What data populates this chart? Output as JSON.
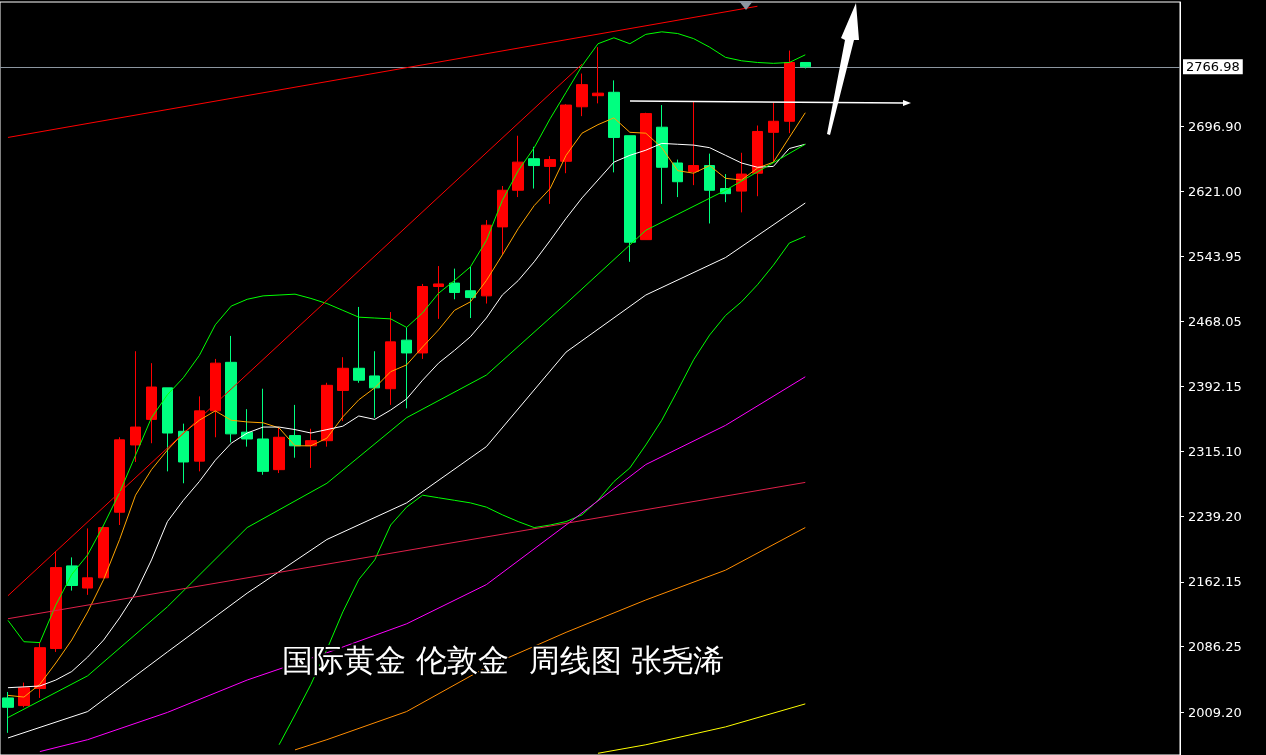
{
  "chart_data": {
    "type": "candlestick",
    "annotations": [
      "国际黄金 伦敦金  周线图 张尧浠"
    ],
    "categories": [
      null,
      null,
      null,
      null,
      null,
      null,
      null,
      null,
      null,
      null,
      null,
      null,
      null,
      null,
      null,
      null,
      null,
      null,
      null,
      null,
      null,
      null,
      null,
      null,
      null,
      null,
      null,
      null,
      null,
      null,
      null,
      null,
      null,
      null,
      null,
      null,
      null,
      null,
      null,
      null,
      null,
      null,
      null,
      null,
      null,
      null,
      null,
      null,
      null,
      null,
      null
    ],
    "ohlc": [
      [
        2026,
        2033,
        1985,
        2015
      ],
      [
        2017,
        2044,
        2015,
        2038
      ],
      [
        2037,
        2091,
        2026,
        2085
      ],
      [
        2084,
        2198,
        2080,
        2179
      ],
      [
        2181,
        2191,
        2152,
        2158
      ],
      [
        2155,
        2225,
        2147,
        2167
      ],
      [
        2167,
        2227,
        2167,
        2226
      ],
      [
        2244,
        2332,
        2229,
        2329
      ],
      [
        2323,
        2433,
        2303,
        2344
      ],
      [
        2353,
        2419,
        2325,
        2391
      ],
      [
        2390,
        2390,
        2292,
        2337
      ],
      [
        2339,
        2348,
        2278,
        2303
      ],
      [
        2304,
        2380,
        2292,
        2363
      ],
      [
        2363,
        2424,
        2332,
        2419
      ],
      [
        2420,
        2451,
        2326,
        2336
      ],
      [
        2338,
        2365,
        2321,
        2330
      ],
      [
        2330,
        2389,
        2288,
        2292
      ],
      [
        2294,
        2343,
        2290,
        2332
      ],
      [
        2334,
        2370,
        2308,
        2322
      ],
      [
        2322,
        2342,
        2296,
        2328
      ],
      [
        2328,
        2396,
        2321,
        2393
      ],
      [
        2387,
        2426,
        2351,
        2413
      ],
      [
        2413,
        2485,
        2396,
        2399
      ],
      [
        2404,
        2433,
        2355,
        2390
      ],
      [
        2389,
        2479,
        2370,
        2444
      ],
      [
        2446,
        2461,
        2366,
        2431
      ],
      [
        2431,
        2512,
        2424,
        2509
      ],
      [
        2509,
        2533,
        2471,
        2512
      ],
      [
        2513,
        2530,
        2494,
        2502
      ],
      [
        2504,
        2532,
        2472,
        2496
      ],
      [
        2498,
        2587,
        2489,
        2581
      ],
      [
        2579,
        2627,
        2547,
        2622
      ],
      [
        2622,
        2686,
        2614,
        2655
      ],
      [
        2659,
        2673,
        2624,
        2651
      ],
      [
        2650,
        2662,
        2606,
        2658
      ],
      [
        2656,
        2723,
        2642,
        2722
      ],
      [
        2720,
        2759,
        2709,
        2746
      ],
      [
        2733,
        2790,
        2724,
        2736
      ],
      [
        2737,
        2751,
        2643,
        2684
      ],
      [
        2686,
        2686,
        2538,
        2561
      ],
      [
        2564,
        2713,
        2564,
        2712
      ],
      [
        2696,
        2722,
        2606,
        2649
      ],
      [
        2654,
        2658,
        2614,
        2632
      ],
      [
        2644,
        2726,
        2628,
        2651
      ],
      [
        2651,
        2665,
        2583,
        2622
      ],
      [
        2624,
        2641,
        2608,
        2618
      ],
      [
        2621,
        2666,
        2596,
        2641
      ],
      [
        2642,
        2698,
        2615,
        2691
      ],
      [
        2690,
        2725,
        2656,
        2703
      ],
      [
        2703,
        2786,
        2689,
        2772
      ],
      [
        2772,
        2772,
        2765,
        2767
      ]
    ],
    "colors": [
      "#00ff80",
      "#ff0000",
      "#ff0000",
      "#ff0000",
      "#00ff80",
      "#ff0000",
      "#ff0000",
      "#ff0000",
      "#ff0000",
      "#ff0000",
      "#00ff80",
      "#00ff80",
      "#ff0000",
      "#ff0000",
      "#00ff80",
      "#00ff80",
      "#00ff80",
      "#ff0000",
      "#00ff80",
      "#ff0000",
      "#ff0000",
      "#ff0000",
      "#00ff80",
      "#00ff80",
      "#ff0000",
      "#00ff80",
      "#ff0000",
      "#ff0000",
      "#00ff80",
      "#00ff80",
      "#ff0000",
      "#ff0000",
      "#ff0000",
      "#00ff80",
      "#ff0000",
      "#ff0000",
      "#ff0000",
      "#ff0000",
      "#00ff80",
      "#00ff80",
      "#ff0000",
      "#00ff80",
      "#00ff80",
      "#ff0000",
      "#00ff80",
      "#00ff80",
      "#ff0000",
      "#ff0000",
      "#ff0000",
      "#ff0000",
      "#00ff80"
    ],
    "series": [
      {
        "type": "line",
        "color": "#ffa500",
        "values": [
          2029,
          2027,
          2042,
          2067,
          2094,
          2127,
          2165,
          2212,
          2264,
          2294,
          2317,
          2337,
          2352,
          2363,
          2352,
          2350,
          2349,
          2343,
          2322,
          2322,
          2331,
          2356,
          2376,
          2390,
          2409,
          2417,
          2438,
          2458,
          2481,
          2491,
          2516,
          2546,
          2577,
          2604,
          2624,
          2663,
          2689,
          2699,
          2707,
          2690,
          2689,
          2672,
          2645,
          2642,
          2651,
          2636,
          2634,
          2648,
          2655,
          2684,
          2713
        ]
      },
      {
        "type": "line",
        "color": "#ffffff",
        "values": [
          2038,
          2039,
          2040,
          2047,
          2057,
          2074,
          2094,
          2120,
          2149,
          2188,
          2233,
          2258,
          2280,
          2305,
          2325,
          2337,
          2344,
          2344,
          2341,
          2337,
          2341,
          2345,
          2357,
          2353,
          2364,
          2377,
          2399,
          2419,
          2434,
          2450,
          2472,
          2499,
          2516,
          2538,
          2563,
          2589,
          2613,
          2634,
          2655,
          2663,
          2669,
          2677,
          2676,
          2675,
          2672,
          2663,
          2654,
          2649,
          2650,
          2671,
          2676
        ]
      },
      {
        "type": "line",
        "color": "#00ff00",
        "values": [
          2117,
          2092,
          2091,
          2135,
          2171,
          2194,
          2229,
          2267,
          2311,
          2355,
          2382,
          2402,
          2428,
          2464,
          2486,
          2494,
          2498,
          2499,
          2500,
          2495,
          2489,
          2481,
          2473,
          2472,
          2471,
          2461,
          2478,
          2501,
          2516,
          2532,
          2563,
          2610,
          2645,
          2672,
          2706,
          2737,
          2768,
          2794,
          2801,
          2794,
          2805,
          2808,
          2806,
          2800,
          2790,
          2778,
          2774,
          2772,
          2771,
          2772,
          2781
        ]
      },
      {
        "type": "line",
        "color": "#00ff00",
        "values": [
          null,
          null,
          null,
          null,
          null,
          null,
          null,
          null,
          null,
          null,
          null,
          null,
          null,
          null,
          null,
          null,
          null,
          1971,
          2006,
          2042,
          2083,
          2127,
          2165,
          2188,
          2229,
          2250,
          2264,
          2261,
          2258,
          2255,
          2250,
          2241,
          2233,
          2226,
          2229,
          2233,
          2241,
          2258,
          2280,
          2296,
          2323,
          2352,
          2387,
          2423,
          2452,
          2475,
          2491,
          2511,
          2534,
          2560,
          2568
        ]
      },
      {
        "type": "line",
        "color": "#00ff00",
        "values": [
          2003,
          null,
          null,
          null,
          null,
          2052,
          null,
          null,
          null,
          null,
          2133,
          null,
          null,
          null,
          null,
          2226,
          null,
          null,
          null,
          null,
          2278,
          null,
          null,
          null,
          null,
          2355,
          null,
          null,
          null,
          null,
          2405,
          null,
          null,
          null,
          null,
          2489,
          null,
          null,
          null,
          null,
          2575,
          null,
          null,
          null,
          null,
          2622,
          null,
          null,
          null,
          null,
          2676
        ]
      },
      {
        "type": "line",
        "color": "#ffffff",
        "values": [
          1979,
          null,
          null,
          null,
          null,
          2010,
          null,
          null,
          null,
          null,
          2080,
          null,
          null,
          null,
          null,
          2149,
          null,
          null,
          null,
          null,
          2212,
          null,
          null,
          null,
          null,
          2255,
          null,
          null,
          null,
          null,
          2321,
          null,
          null,
          null,
          null,
          2432,
          null,
          null,
          null,
          null,
          2499,
          null,
          null,
          null,
          null,
          2543,
          null,
          null,
          null,
          null,
          2607
        ]
      },
      {
        "type": "line",
        "color": "#ff00ff",
        "values": [
          null,
          null,
          1963,
          null,
          null,
          1977,
          null,
          null,
          null,
          null,
          2009,
          null,
          null,
          null,
          null,
          2047,
          null,
          null,
          null,
          null,
          2079,
          null,
          null,
          null,
          null,
          2113,
          null,
          null,
          null,
          null,
          2159,
          null,
          null,
          null,
          null,
          2229,
          null,
          null,
          null,
          null,
          2300,
          null,
          null,
          null,
          null,
          2346,
          null,
          null,
          null,
          null,
          2403
        ]
      },
      {
        "type": "line",
        "color": "#ff8c00",
        "values": [
          null,
          null,
          null,
          null,
          null,
          null,
          null,
          null,
          null,
          null,
          null,
          null,
          null,
          null,
          null,
          null,
          null,
          null,
          1965,
          null,
          1977,
          null,
          null,
          null,
          null,
          2010,
          null,
          null,
          null,
          null,
          2062,
          null,
          null,
          null,
          null,
          2103,
          null,
          null,
          null,
          null,
          2141,
          null,
          null,
          null,
          null,
          2176,
          null,
          null,
          null,
          null,
          2226
        ]
      },
      {
        "type": "line",
        "color": "#ffff00",
        "values": [
          null,
          null,
          null,
          null,
          null,
          null,
          null,
          null,
          null,
          null,
          null,
          null,
          null,
          null,
          null,
          null,
          null,
          null,
          null,
          null,
          null,
          null,
          null,
          null,
          null,
          null,
          null,
          null,
          null,
          null,
          null,
          null,
          null,
          null,
          null,
          null,
          null,
          1961,
          null,
          null,
          1971,
          null,
          null,
          null,
          null,
          1992,
          null,
          null,
          null,
          null,
          2019
        ]
      },
      {
        "type": "line",
        "color": "#ff0000",
        "values": [
          2146,
          null,
          null,
          null,
          null,
          null,
          null,
          null,
          null,
          null,
          null,
          null,
          null,
          null,
          null,
          null,
          null,
          null,
          null,
          null,
          null,
          null,
          null,
          null,
          null,
          null,
          null,
          null,
          null,
          null,
          null,
          null,
          null,
          null,
          null,
          null,
          2770,
          null,
          null,
          null,
          null,
          null,
          null,
          null,
          null,
          null,
          null,
          null,
          null,
          null,
          null
        ]
      },
      {
        "type": "line",
        "color": "#ff0000",
        "values": [
          2684,
          null,
          null,
          null,
          null,
          null,
          null,
          null,
          null,
          null,
          null,
          null,
          null,
          null,
          null,
          null,
          null,
          null,
          null,
          null,
          null,
          null,
          null,
          null,
          null,
          null,
          null,
          null,
          null,
          null,
          null,
          null,
          null,
          null,
          null,
          null,
          null,
          null,
          null,
          null,
          null,
          null,
          null,
          null,
          null,
          null,
          null,
          2838,
          null,
          null,
          null
        ]
      },
      {
        "type": "line",
        "color": "#e0204a",
        "values": [
          2119,
          null,
          null,
          null,
          null,
          null,
          null,
          null,
          null,
          null,
          null,
          null,
          null,
          null,
          null,
          null,
          null,
          null,
          null,
          null,
          null,
          null,
          null,
          null,
          null,
          null,
          null,
          null,
          null,
          null,
          null,
          null,
          null,
          null,
          null,
          null,
          null,
          null,
          null,
          null,
          null,
          null,
          null,
          null,
          null,
          null,
          null,
          null,
          null,
          null,
          2279
        ]
      }
    ],
    "ylim": [
      1959,
      2843
    ],
    "yticks": [
      {
        "value": 2009.2,
        "label": "2009.20"
      },
      {
        "value": 2086.25,
        "label": "2086.25"
      },
      {
        "value": 2162.15,
        "label": "2162.15"
      },
      {
        "value": 2239.2,
        "label": "2239.20"
      },
      {
        "value": 2315.1,
        "label": "2315.10"
      },
      {
        "value": 2392.15,
        "label": "2392.15"
      },
      {
        "value": 2468.05,
        "label": "2468.05"
      },
      {
        "value": 2543.95,
        "label": "2543.95"
      },
      {
        "value": 2621,
        "label": "2621.00"
      },
      {
        "value": 2696.9,
        "label": "2696.90"
      }
    ],
    "ref_lines": [
      {
        "axis": "y",
        "value": 2766.98,
        "label": "2766.98",
        "color": "#8c96a0"
      }
    ],
    "tick_labels": "y",
    "marker": "none"
  }
}
